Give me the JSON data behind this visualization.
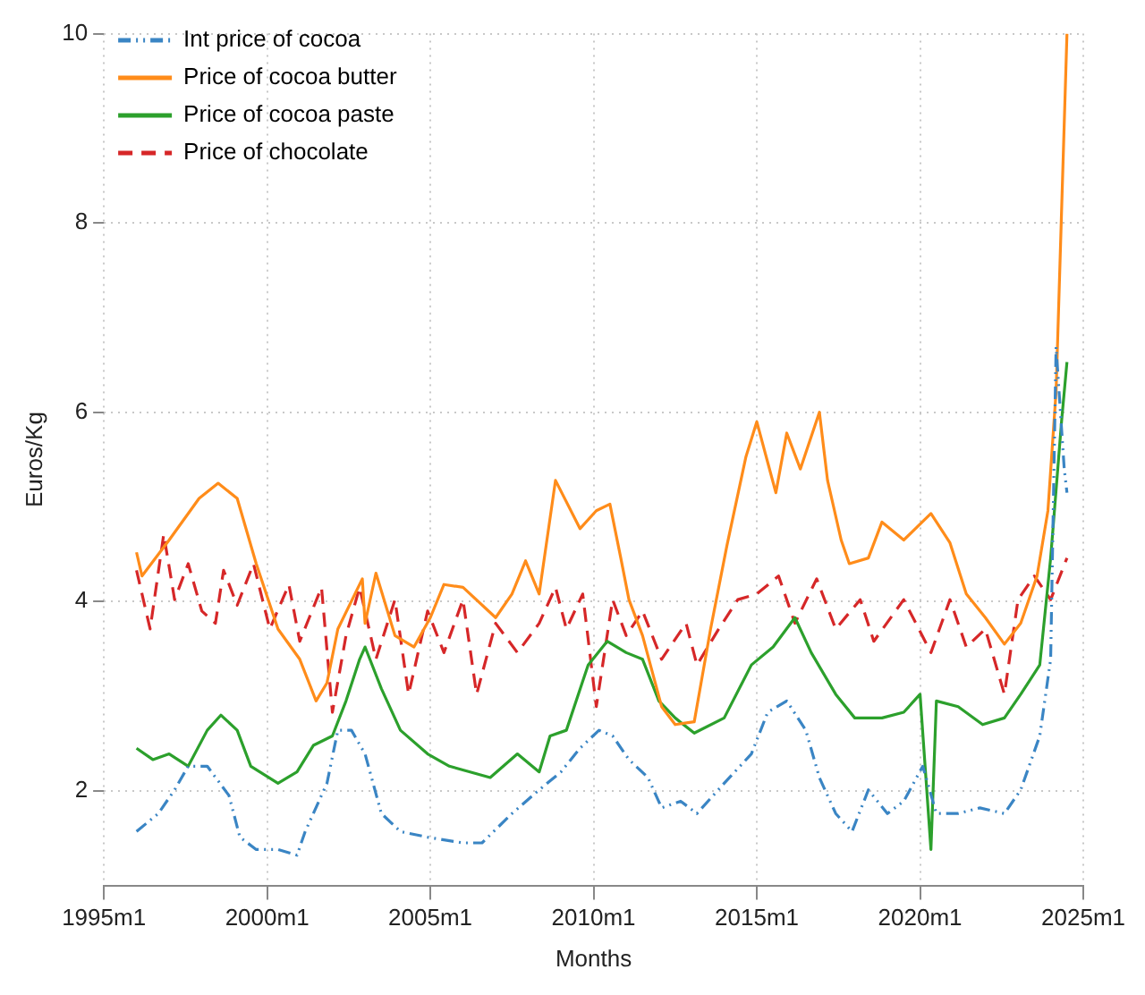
{
  "chart_data": {
    "type": "line",
    "xlabel": "Months",
    "ylabel": "Euros/Kg",
    "xlim": [
      "1995-01",
      "2025-01"
    ],
    "xticks": [
      {
        "value": "1995-01",
        "label": "1995m1"
      },
      {
        "value": "2000-01",
        "label": "2000m1"
      },
      {
        "value": "2005-01",
        "label": "2005m1"
      },
      {
        "value": "2010-01",
        "label": "2010m1"
      },
      {
        "value": "2015-01",
        "label": "2015m1"
      },
      {
        "value": "2020-01",
        "label": "2020m1"
      },
      {
        "value": "2025-01",
        "label": "2025m1"
      }
    ],
    "ylim": [
      1,
      10
    ],
    "yticks": [
      2,
      4,
      6,
      8,
      10
    ],
    "grid": true,
    "legend": "top left",
    "marker": "none",
    "series": [
      {
        "name": "Int price of cocoa",
        "color": "#3a85c4",
        "line_style": "dotted",
        "x": [
          "1996-01",
          "1996-09",
          "1997-03",
          "1997-08",
          "1998-03",
          "1998-11",
          "1999-03",
          "1999-09",
          "2000-05",
          "2000-12",
          "2001-03",
          "2001-11",
          "2002-03",
          "2002-08",
          "2003-01",
          "2003-07",
          "2004-02",
          "2004-12",
          "2006-01",
          "2006-08",
          "2007-07",
          "2008-05",
          "2009-01",
          "2009-08",
          "2010-03",
          "2010-08",
          "2011-02",
          "2011-09",
          "2012-02",
          "2012-09",
          "2013-03",
          "2014-01",
          "2014-11",
          "2015-05",
          "2015-12",
          "2016-07",
          "2016-12",
          "2017-06",
          "2017-12",
          "2018-06",
          "2019-01",
          "2019-07",
          "2020-02",
          "2020-07",
          "2021-03",
          "2021-11",
          "2022-08",
          "2023-02",
          "2023-09",
          "2024-01",
          "2024-03",
          "2024-06",
          "2024-07"
        ],
        "values": [
          1.57,
          1.76,
          2.01,
          2.26,
          2.26,
          1.95,
          1.51,
          1.38,
          1.38,
          1.32,
          1.57,
          2.08,
          2.64,
          2.64,
          2.39,
          1.76,
          1.57,
          1.51,
          1.45,
          1.45,
          1.76,
          2.01,
          2.2,
          2.45,
          2.64,
          2.58,
          2.33,
          2.14,
          1.82,
          1.89,
          1.76,
          2.08,
          2.39,
          2.83,
          2.95,
          2.64,
          2.14,
          1.76,
          1.57,
          2.01,
          1.76,
          1.89,
          2.26,
          1.76,
          1.76,
          1.82,
          1.76,
          2.01,
          2.58,
          3.39,
          6.69,
          5.4,
          5.15
        ]
      },
      {
        "name": "Price of cocoa butter",
        "color": "#ff8c1a",
        "line_style": "solid",
        "x": [
          "1996-01",
          "1996-03",
          "1997-01",
          "1997-12",
          "1998-07",
          "1999-02",
          "1999-09",
          "2000-05",
          "2001-01",
          "2001-07",
          "2001-11",
          "2002-03",
          "2002-12",
          "2003-01",
          "2003-05",
          "2003-12",
          "2004-07",
          "2005-01",
          "2005-06",
          "2006-01",
          "2007-01",
          "2007-07",
          "2007-12",
          "2008-05",
          "2008-11",
          "2009-08",
          "2010-02",
          "2010-07",
          "2010-11",
          "2011-02",
          "2011-07",
          "2012-02",
          "2012-07",
          "2013-02",
          "2013-08",
          "2014-02",
          "2014-09",
          "2015-01",
          "2015-05",
          "2015-08",
          "2015-12",
          "2016-05",
          "2016-12",
          "2017-03",
          "2017-08",
          "2017-11",
          "2018-06",
          "2018-11",
          "2019-07",
          "2020-05",
          "2020-12",
          "2021-06",
          "2022-01",
          "2022-08",
          "2023-02",
          "2023-08",
          "2023-12",
          "2024-03",
          "2024-07"
        ],
        "values": [
          4.52,
          4.27,
          4.65,
          5.09,
          5.25,
          5.09,
          4.4,
          3.71,
          3.39,
          2.95,
          3.14,
          3.71,
          4.24,
          3.77,
          4.3,
          3.64,
          3.52,
          3.83,
          4.18,
          4.15,
          3.83,
          4.08,
          4.43,
          4.08,
          5.28,
          4.77,
          4.96,
          5.03,
          4.46,
          4.02,
          3.64,
          2.89,
          2.7,
          2.73,
          3.71,
          4.59,
          5.53,
          5.9,
          5.47,
          5.15,
          5.78,
          5.4,
          6.0,
          5.28,
          4.65,
          4.4,
          4.46,
          4.84,
          4.65,
          4.93,
          4.62,
          4.08,
          3.83,
          3.55,
          3.77,
          4.27,
          4.96,
          6.22,
          10.0
        ]
      },
      {
        "name": "Price of cocoa paste",
        "color": "#2ca02c",
        "line_style": "solid",
        "x": [
          "1996-01",
          "1996-07",
          "1997-01",
          "1997-08",
          "1998-03",
          "1998-08",
          "1999-02",
          "1999-07",
          "2000-05",
          "2000-12",
          "2001-06",
          "2002-01",
          "2002-06",
          "2002-11",
          "2003-01",
          "2003-07",
          "2004-02",
          "2004-12",
          "2005-08",
          "2006-11",
          "2007-09",
          "2008-05",
          "2008-09",
          "2009-03",
          "2009-11",
          "2010-06",
          "2011-01",
          "2011-07",
          "2012-01",
          "2012-07",
          "2013-02",
          "2014-01",
          "2014-11",
          "2015-07",
          "2016-03",
          "2016-09",
          "2017-06",
          "2018-01",
          "2018-11",
          "2019-07",
          "2020-01",
          "2020-05",
          "2020-07",
          "2021-03",
          "2021-12",
          "2022-08",
          "2023-02",
          "2023-09",
          "2024-01",
          "2024-05",
          "2024-07"
        ],
        "values": [
          2.45,
          2.33,
          2.39,
          2.26,
          2.64,
          2.8,
          2.64,
          2.26,
          2.08,
          2.2,
          2.48,
          2.58,
          2.95,
          3.39,
          3.52,
          3.08,
          2.64,
          2.39,
          2.26,
          2.14,
          2.39,
          2.2,
          2.58,
          2.64,
          3.33,
          3.58,
          3.46,
          3.39,
          2.95,
          2.77,
          2.61,
          2.77,
          3.33,
          3.52,
          3.83,
          3.46,
          3.02,
          2.77,
          2.77,
          2.83,
          3.02,
          1.38,
          2.95,
          2.89,
          2.7,
          2.77,
          3.02,
          3.33,
          4.46,
          5.9,
          6.53
        ]
      },
      {
        "name": "Price of chocolate",
        "color": "#d62728",
        "line_style": "dashed",
        "x": [
          "1996-01",
          "1996-06",
          "1996-11",
          "1997-03",
          "1997-08",
          "1998-01",
          "1998-06",
          "1998-09",
          "1999-02",
          "1999-08",
          "2000-02",
          "2000-09",
          "2001-01",
          "2001-09",
          "2002-01",
          "2002-06",
          "2002-11",
          "2003-05",
          "2003-12",
          "2004-05",
          "2004-12",
          "2005-06",
          "2006-01",
          "2006-06",
          "2007-01",
          "2007-09",
          "2008-05",
          "2008-11",
          "2009-03",
          "2009-09",
          "2010-02",
          "2010-08",
          "2011-01",
          "2011-07",
          "2012-02",
          "2012-11",
          "2013-03",
          "2013-11",
          "2014-06",
          "2015-01",
          "2015-09",
          "2016-03",
          "2016-11",
          "2017-06",
          "2018-03",
          "2018-08",
          "2019-07",
          "2020-05",
          "2020-12",
          "2021-06",
          "2022-01",
          "2022-08",
          "2023-01",
          "2023-07",
          "2024-01",
          "2024-07"
        ],
        "values": [
          4.33,
          3.71,
          4.71,
          4.02,
          4.4,
          3.9,
          3.77,
          4.33,
          3.96,
          4.4,
          3.71,
          4.18,
          3.58,
          4.15,
          2.83,
          3.64,
          4.15,
          3.39,
          4.02,
          3.02,
          3.9,
          3.46,
          4.02,
          3.02,
          3.77,
          3.46,
          3.77,
          4.15,
          3.71,
          4.08,
          2.89,
          4.02,
          3.64,
          3.9,
          3.39,
          3.77,
          3.33,
          3.71,
          4.02,
          4.08,
          4.27,
          3.77,
          4.24,
          3.71,
          4.02,
          3.58,
          4.02,
          3.46,
          4.02,
          3.52,
          3.71,
          3.02,
          4.02,
          4.27,
          4.02,
          4.46
        ]
      }
    ]
  }
}
